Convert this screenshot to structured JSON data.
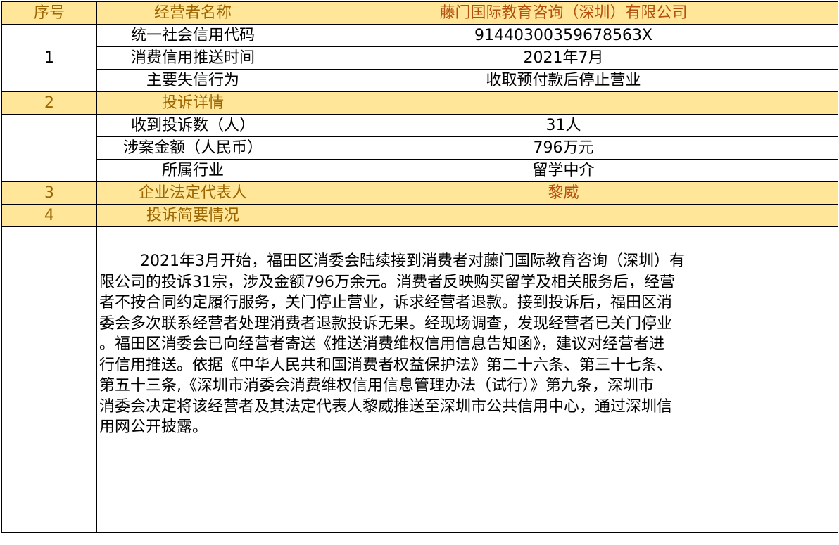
{
  "header": {
    "col_no": "序号",
    "col_name": "经营者名称",
    "company": "藤门国际教育咨询（深圳）有限公司"
  },
  "section1": {
    "no": "1",
    "rows": [
      {
        "label": "统一社会信用代码",
        "value": "91440300359678563X"
      },
      {
        "label": "消费信用推送时间",
        "value": "2021年7月"
      },
      {
        "label": "主要失信行为",
        "value": "收取预付款后停止营业"
      }
    ]
  },
  "section2": {
    "no": "2",
    "title": "投诉详情",
    "rows": [
      {
        "label": "收到投诉数（人）",
        "value": "31人"
      },
      {
        "label": "涉案金额（人民币）",
        "value": "796万元"
      },
      {
        "label": "所属行业",
        "value": "留学中介"
      }
    ]
  },
  "section3": {
    "no": "3",
    "label": "企业法定代表人",
    "value": "黎威"
  },
  "section4": {
    "no": "4",
    "label": "投诉简要情况",
    "lines": [
      "2021年3月开始，福田区消委会陆续接到消费者对藤门国际教育咨询（深圳）有",
      "限公司的投诉31宗，涉及金额796万余元。消费者反映购买留学及相关服务后，经营",
      "者不按合同约定履行服务，关门停止营业，诉求经营者退款。接到投诉后，福田区消",
      "委会多次联系经营者处理消费者退款投诉无果。经现场调查，发现经营者已关门停业",
      "。福田区消委会已向经营者寄送《推送消费维权信用信息告知函》，建议对经营者进",
      "行信用推送。依据《中华人民共和国消费者权益保护法》第二十六条、第三十七条、",
      "第五十三条,《深圳市消委会消费维权信用信息管理办法（试行）》第九条，深圳市",
      "消委会决定将该经营者及其法定代表人黎威推送至深圳市公共信用中心，通过深圳信",
      "用网公开披露。"
    ]
  },
  "colors": {
    "highlight_fill": "#FFE699",
    "highlight_text": "#9C6500",
    "emphasis_text": "#B5500E"
  }
}
